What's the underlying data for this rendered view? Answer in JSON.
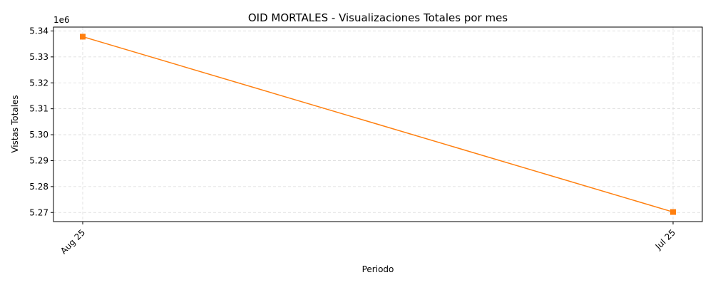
{
  "chart_data": {
    "type": "line",
    "title": "OID MORTALES - Visualizaciones Totales por mes",
    "xlabel": "Periodo",
    "ylabel": "Vistas Totales",
    "y_offset_label": "1e6",
    "categories": [
      "Aug 25",
      "Jul 25"
    ],
    "series": [
      {
        "values": [
          5337800,
          5270200
        ],
        "color": "#ff7f0e",
        "marker": "square"
      }
    ],
    "yticks": [
      5.27,
      5.28,
      5.29,
      5.3,
      5.31,
      5.32,
      5.33,
      5.34
    ],
    "ytick_labels": [
      "5.27",
      "5.28",
      "5.29",
      "5.30",
      "5.31",
      "5.32",
      "5.33",
      "5.34"
    ],
    "ylim": [
      5266500,
      5341500
    ],
    "grid": true,
    "xtick_rotation_deg": 45
  }
}
